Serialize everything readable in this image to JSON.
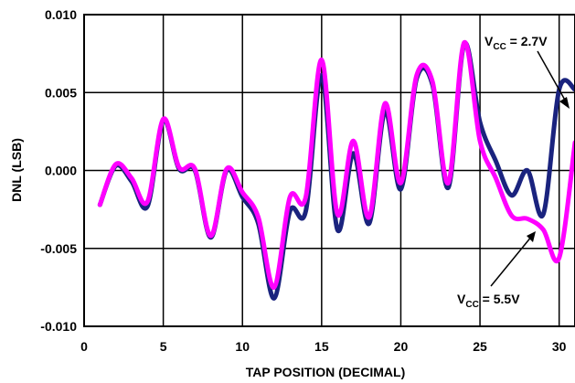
{
  "chart_data": {
    "type": "line",
    "title": "",
    "xlabel": "TAP POSITION (DECIMAL)",
    "ylabel": "DNL (LSB)",
    "xlim": [
      0,
      31
    ],
    "ylim": [
      -0.01,
      0.01
    ],
    "x_ticks": [
      0,
      5,
      10,
      15,
      20,
      25,
      30
    ],
    "x_tick_labels": [
      "0",
      "5",
      "10",
      "15",
      "20",
      "25",
      "30"
    ],
    "y_ticks": [
      0.01,
      0.005,
      0.0,
      -0.005,
      -0.01
    ],
    "y_tick_labels": [
      "0.010",
      "0.005",
      "0.000",
      "-0.005",
      "-0.010"
    ],
    "grid": true,
    "series": [
      {
        "name": "VCC = 2.7V",
        "color": "#1a237e",
        "x": [
          1,
          2,
          3,
          4,
          5,
          6,
          7,
          8,
          9,
          10,
          11,
          12,
          13,
          14,
          15,
          16,
          17,
          18,
          19,
          20,
          21,
          22,
          23,
          24,
          25,
          26,
          27,
          28,
          29,
          30,
          31
        ],
        "y": [
          -0.0022,
          0.0003,
          -0.0007,
          -0.0023,
          0.0032,
          0.0001,
          0.0,
          -0.0043,
          0.0,
          -0.0017,
          -0.0034,
          -0.0082,
          -0.0026,
          -0.0026,
          0.0061,
          -0.0038,
          0.0011,
          -0.0034,
          0.0038,
          -0.0012,
          0.0059,
          0.0055,
          -0.0011,
          0.0081,
          0.0031,
          0.0006,
          -0.0016,
          0.0,
          -0.0028,
          0.0052,
          0.0052
        ]
      },
      {
        "name": "VCC = 5.5V",
        "color": "#ff00ff",
        "x": [
          1,
          2,
          3,
          4,
          5,
          6,
          7,
          8,
          9,
          10,
          11,
          12,
          13,
          14,
          15,
          16,
          17,
          18,
          19,
          20,
          21,
          22,
          23,
          24,
          25,
          26,
          27,
          28,
          29,
          30,
          31
        ],
        "y": [
          -0.0022,
          0.0004,
          -0.0005,
          -0.002,
          0.0033,
          0.0002,
          0.0001,
          -0.0042,
          0.0001,
          -0.0014,
          -0.003,
          -0.0075,
          -0.0017,
          -0.0017,
          0.0071,
          -0.0028,
          0.0019,
          -0.003,
          0.0043,
          -0.0008,
          0.0061,
          0.0057,
          -0.0008,
          0.0082,
          0.0019,
          -0.0005,
          -0.0029,
          -0.0031,
          -0.0038,
          -0.0056,
          0.0018
        ]
      }
    ],
    "annotations": [
      {
        "main": "V",
        "sub": "CC",
        "rest": " = 2.7V",
        "target_series": 0
      },
      {
        "main": "V",
        "sub": "CC",
        "rest": " = 5.5V",
        "target_series": 1
      }
    ]
  }
}
